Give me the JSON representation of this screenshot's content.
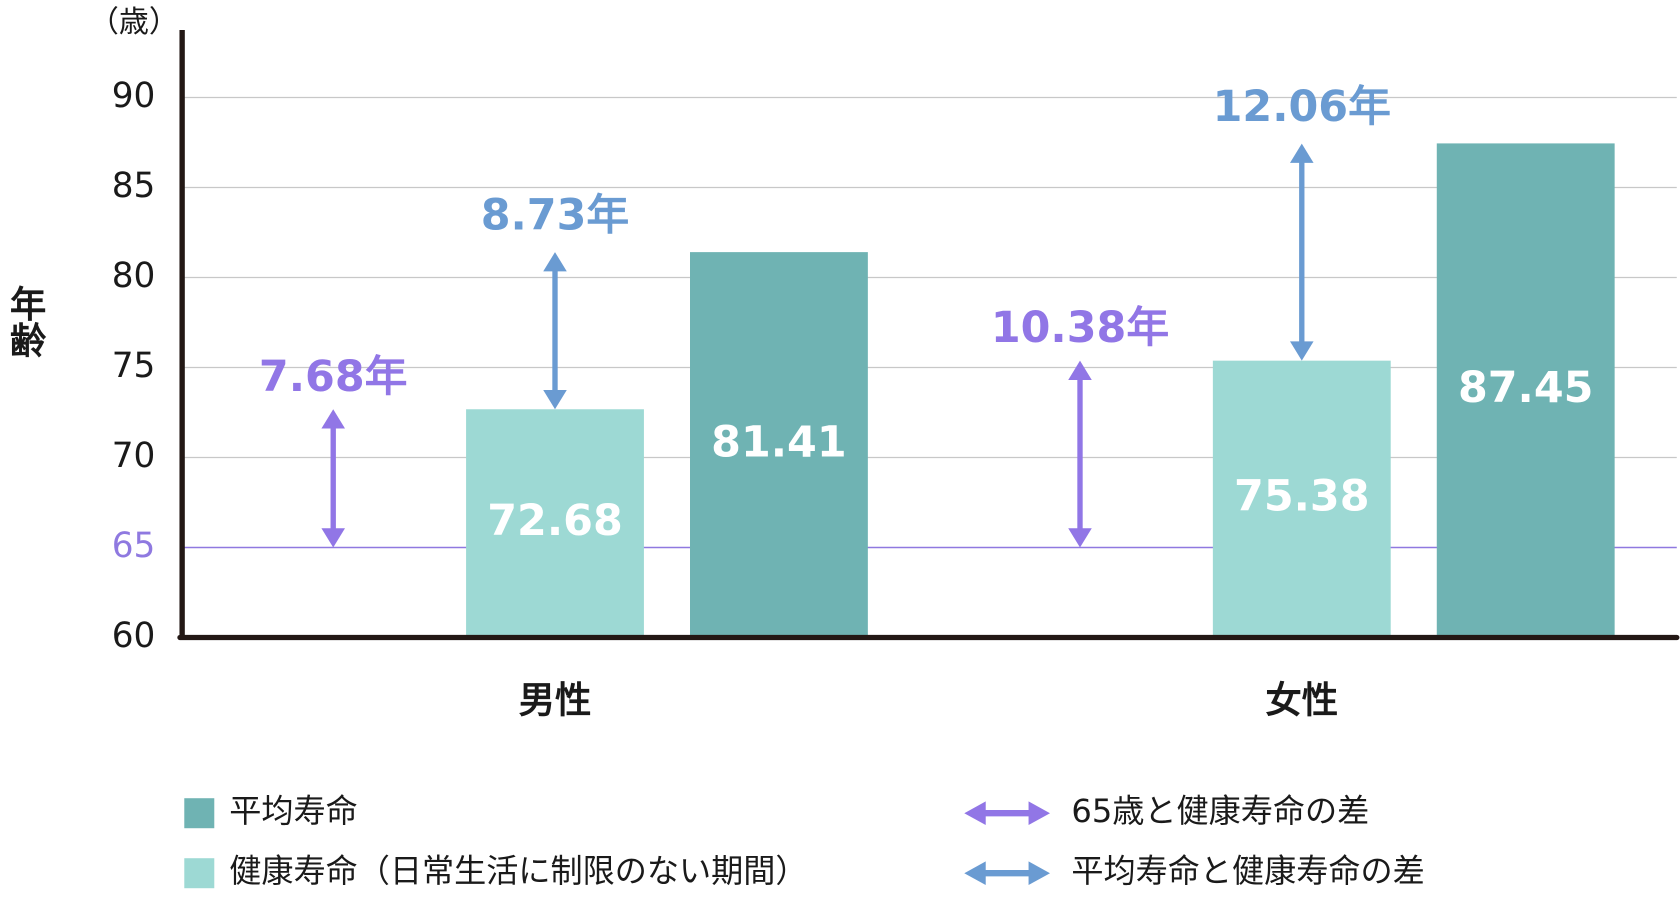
{
  "chart_data": {
    "type": "bar",
    "y_axis_label": "年齢",
    "y_unit_label": "（歳）",
    "categories": [
      "男性",
      "女性"
    ],
    "series": [
      {
        "name": "平均寿命",
        "color": "#6fb3b3",
        "values": [
          81.41,
          87.45
        ]
      },
      {
        "name": "健康寿命（日常生活に制限のない期間）",
        "color": "#9dd9d4",
        "values": [
          72.68,
          75.38
        ]
      }
    ],
    "arrow_series": [
      {
        "name": "65歳と健康寿命の差",
        "color": "#9176e6",
        "values": [
          7.68,
          10.38
        ],
        "value_labels": [
          "7.68年",
          "10.38年"
        ]
      },
      {
        "name": "平均寿命と健康寿命の差",
        "color": "#6a9bd2",
        "values": [
          8.73,
          12.06
        ],
        "value_labels": [
          "8.73年",
          "12.06年"
        ]
      }
    ],
    "reference_line": {
      "value": 65,
      "color": "#8f79e0"
    },
    "ylim": [
      60,
      93.75
    ],
    "yticks": [
      60,
      65,
      70,
      75,
      80,
      85,
      90
    ],
    "grid": true
  }
}
